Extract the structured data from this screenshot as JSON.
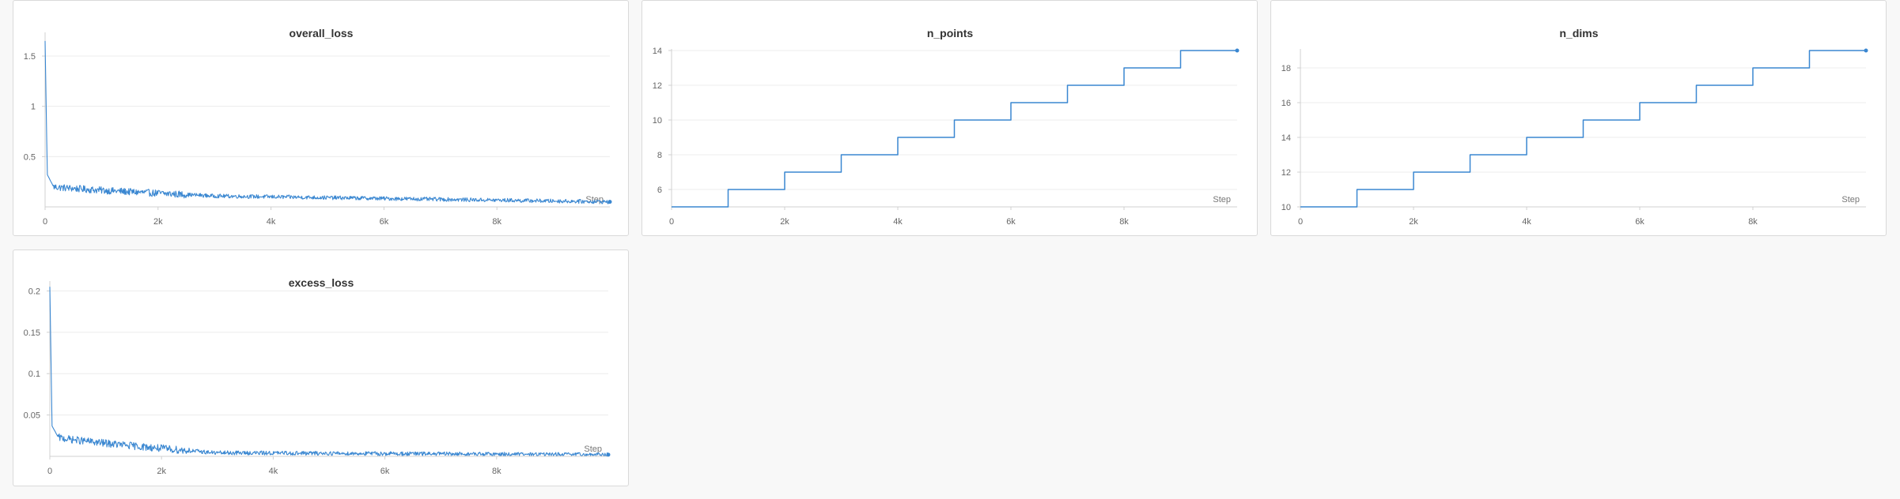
{
  "theme": {
    "line_color": "#3a87d1",
    "grid_color": "#ececec",
    "axis_color": "#d0d0d0"
  },
  "chart_data": [
    {
      "type": "line",
      "title": "overall_loss",
      "xlabel": "Step",
      "xlim": [
        0,
        10000
      ],
      "ylim": [
        0,
        1.72
      ],
      "xticks": [
        0,
        2000,
        4000,
        6000,
        8000
      ],
      "xtick_labels": [
        "0",
        "2k",
        "4k",
        "6k",
        "8k"
      ],
      "yticks": [
        0.5,
        1,
        1.5
      ],
      "ytick_labels": [
        "0.5",
        "1",
        "1.5"
      ],
      "series": [
        {
          "noisy": true,
          "start": 1.65,
          "plateau": 0.2,
          "floor": 0.05,
          "decay_steps": 2800,
          "noise": 0.035,
          "last_value": 0.05,
          "count": 1000
        }
      ]
    },
    {
      "type": "line",
      "title": "n_points",
      "xlabel": "Step",
      "xlim": [
        0,
        10000
      ],
      "ylim": [
        5,
        14
      ],
      "xticks": [
        0,
        2000,
        4000,
        6000,
        8000
      ],
      "xtick_labels": [
        "0",
        "2k",
        "4k",
        "6k",
        "8k"
      ],
      "yticks": [
        6,
        8,
        10,
        12,
        14
      ],
      "ytick_labels": [
        "6",
        "8",
        "10",
        "12",
        "14"
      ],
      "series": [
        {
          "step": true,
          "x": [
            0,
            1000,
            2000,
            3000,
            4000,
            5000,
            6000,
            7000,
            8000,
            9000,
            10000
          ],
          "y": [
            5,
            6,
            7,
            8,
            9,
            10,
            11,
            12,
            13,
            14,
            14
          ]
        }
      ]
    },
    {
      "type": "line",
      "title": "n_dims",
      "xlabel": "Step",
      "xlim": [
        0,
        10000
      ],
      "ylim": [
        10,
        19
      ],
      "xticks": [
        0,
        2000,
        4000,
        6000,
        8000
      ],
      "xtick_labels": [
        "0",
        "2k",
        "4k",
        "6k",
        "8k"
      ],
      "yticks": [
        10,
        12,
        14,
        16,
        18
      ],
      "ytick_labels": [
        "10",
        "12",
        "14",
        "16",
        "18"
      ],
      "series": [
        {
          "step": true,
          "x": [
            0,
            1000,
            2000,
            3000,
            4000,
            5000,
            6000,
            7000,
            8000,
            9000,
            10000
          ],
          "y": [
            10,
            11,
            12,
            13,
            14,
            15,
            16,
            17,
            18,
            19,
            19
          ]
        }
      ]
    },
    {
      "type": "line",
      "title": "excess_loss",
      "xlabel": "Step",
      "xlim": [
        0,
        10000
      ],
      "ylim": [
        0,
        0.21
      ],
      "xticks": [
        0,
        2000,
        4000,
        6000,
        8000
      ],
      "xtick_labels": [
        "0",
        "2k",
        "4k",
        "6k",
        "8k"
      ],
      "yticks": [
        0.05,
        0.1,
        0.15,
        0.2
      ],
      "ytick_labels": [
        "0.05",
        "0.1",
        "0.15",
        "0.2"
      ],
      "series": [
        {
          "noisy": true,
          "start": 0.205,
          "plateau": 0.023,
          "floor": 0.002,
          "decay_steps": 2800,
          "noise": 0.0045,
          "last_value": 0.002,
          "count": 1000
        }
      ]
    }
  ]
}
